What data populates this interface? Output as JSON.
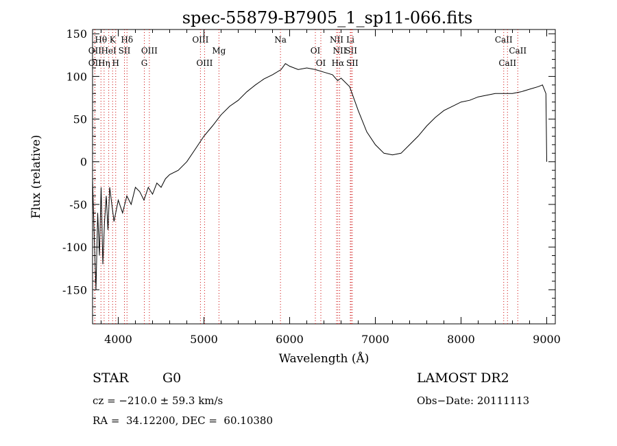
{
  "chart_data": {
    "type": "line",
    "title": "spec-55879-B7905_1_sp11-066.fits",
    "xlabel": "Wavelength (Å)",
    "ylabel": "Flux (relative)",
    "xlim": [
      3700,
      9100
    ],
    "ylim": [
      -190,
      155
    ],
    "xticks": [
      4000,
      5000,
      6000,
      7000,
      8000,
      9000
    ],
    "yticks": [
      -150,
      -100,
      -50,
      0,
      50,
      100,
      150
    ],
    "grid": false,
    "series": [
      {
        "values_format": "[wavelength_A, relative_flux]",
        "points": [
          [
            3700,
            -20
          ],
          [
            3720,
            -90
          ],
          [
            3740,
            -150
          ],
          [
            3760,
            -60
          ],
          [
            3780,
            -110
          ],
          [
            3800,
            -30
          ],
          [
            3820,
            -120
          ],
          [
            3840,
            -70
          ],
          [
            3860,
            -40
          ],
          [
            3880,
            -80
          ],
          [
            3900,
            -30
          ],
          [
            3950,
            -70
          ],
          [
            4000,
            -45
          ],
          [
            4050,
            -60
          ],
          [
            4100,
            -40
          ],
          [
            4150,
            -50
          ],
          [
            4200,
            -30
          ],
          [
            4250,
            -35
          ],
          [
            4300,
            -45
          ],
          [
            4350,
            -30
          ],
          [
            4400,
            -38
          ],
          [
            4450,
            -25
          ],
          [
            4500,
            -30
          ],
          [
            4550,
            -20
          ],
          [
            4600,
            -15
          ],
          [
            4700,
            -10
          ],
          [
            4800,
            0
          ],
          [
            4900,
            15
          ],
          [
            5000,
            30
          ],
          [
            5100,
            42
          ],
          [
            5200,
            55
          ],
          [
            5300,
            65
          ],
          [
            5400,
            72
          ],
          [
            5500,
            82
          ],
          [
            5600,
            90
          ],
          [
            5700,
            97
          ],
          [
            5800,
            102
          ],
          [
            5900,
            108
          ],
          [
            5950,
            115
          ],
          [
            6000,
            112
          ],
          [
            6100,
            108
          ],
          [
            6200,
            110
          ],
          [
            6300,
            108
          ],
          [
            6400,
            105
          ],
          [
            6500,
            102
          ],
          [
            6560,
            95
          ],
          [
            6600,
            98
          ],
          [
            6700,
            88
          ],
          [
            6800,
            60
          ],
          [
            6900,
            35
          ],
          [
            7000,
            20
          ],
          [
            7100,
            10
          ],
          [
            7200,
            8
          ],
          [
            7300,
            10
          ],
          [
            7400,
            20
          ],
          [
            7500,
            30
          ],
          [
            7600,
            42
          ],
          [
            7700,
            52
          ],
          [
            7800,
            60
          ],
          [
            7900,
            65
          ],
          [
            8000,
            70
          ],
          [
            8100,
            72
          ],
          [
            8200,
            76
          ],
          [
            8300,
            78
          ],
          [
            8400,
            80
          ],
          [
            8500,
            80
          ],
          [
            8600,
            80
          ],
          [
            8700,
            82
          ],
          [
            8800,
            85
          ],
          [
            8900,
            88
          ],
          [
            8950,
            90
          ],
          [
            8990,
            80
          ],
          [
            9000,
            0
          ]
        ]
      }
    ],
    "line_markers": [
      {
        "label": "Hθ",
        "row": 1,
        "wavelength": 3798
      },
      {
        "label": "K",
        "row": 1,
        "wavelength": 3934
      },
      {
        "label": "Hδ",
        "row": 1,
        "wavelength": 4102
      },
      {
        "label": "OII",
        "row": 2,
        "wavelength": 3727
      },
      {
        "label": "HeI",
        "row": 2,
        "wavelength": 3889
      },
      {
        "label": "SII",
        "row": 2,
        "wavelength": 4072
      },
      {
        "label": "OIII",
        "row": 2,
        "wavelength": 4363
      },
      {
        "label": "OIII",
        "row": 1,
        "wavelength": 4959
      },
      {
        "label": "Mg",
        "row": 2,
        "wavelength": 5175
      },
      {
        "label": "Na",
        "row": 1,
        "wavelength": 5893
      },
      {
        "label": "OI",
        "row": 2,
        "wavelength": 6300
      },
      {
        "label": "NII",
        "row": 1,
        "wavelength": 6548
      },
      {
        "label": "Li",
        "row": 1,
        "wavelength": 6708
      },
      {
        "label": "NII",
        "row": 2,
        "wavelength": 6584
      },
      {
        "label": "SII",
        "row": 2,
        "wavelength": 6717
      },
      {
        "label": "CaII",
        "row": 1,
        "wavelength": 8498
      },
      {
        "label": "CaII",
        "row": 2,
        "wavelength": 8662
      },
      {
        "label": "OII",
        "row": 3,
        "wavelength": 3727
      },
      {
        "label": "Hη",
        "row": 3,
        "wavelength": 3835
      },
      {
        "label": "H",
        "row": 3,
        "wavelength": 3970
      },
      {
        "label": "G",
        "row": 3,
        "wavelength": 4304
      },
      {
        "label": "OIII",
        "row": 3,
        "wavelength": 5007
      },
      {
        "label": "OI",
        "row": 3,
        "wavelength": 6364
      },
      {
        "label": "Hα",
        "row": 3,
        "wavelength": 6563
      },
      {
        "label": "SII",
        "row": 3,
        "wavelength": 6731
      },
      {
        "label": "CaII",
        "row": 3,
        "wavelength": 8542
      }
    ],
    "marker_color": "#cc0000"
  },
  "info": {
    "class": "STAR",
    "subclass": "G0",
    "survey": "LAMOST DR2",
    "cz": "cz = −210.0 ± 59.3 km/s",
    "obs_date": "Obs−Date: 20111113",
    "coords": "RA =  34.12200, DEC =  60.10380"
  }
}
